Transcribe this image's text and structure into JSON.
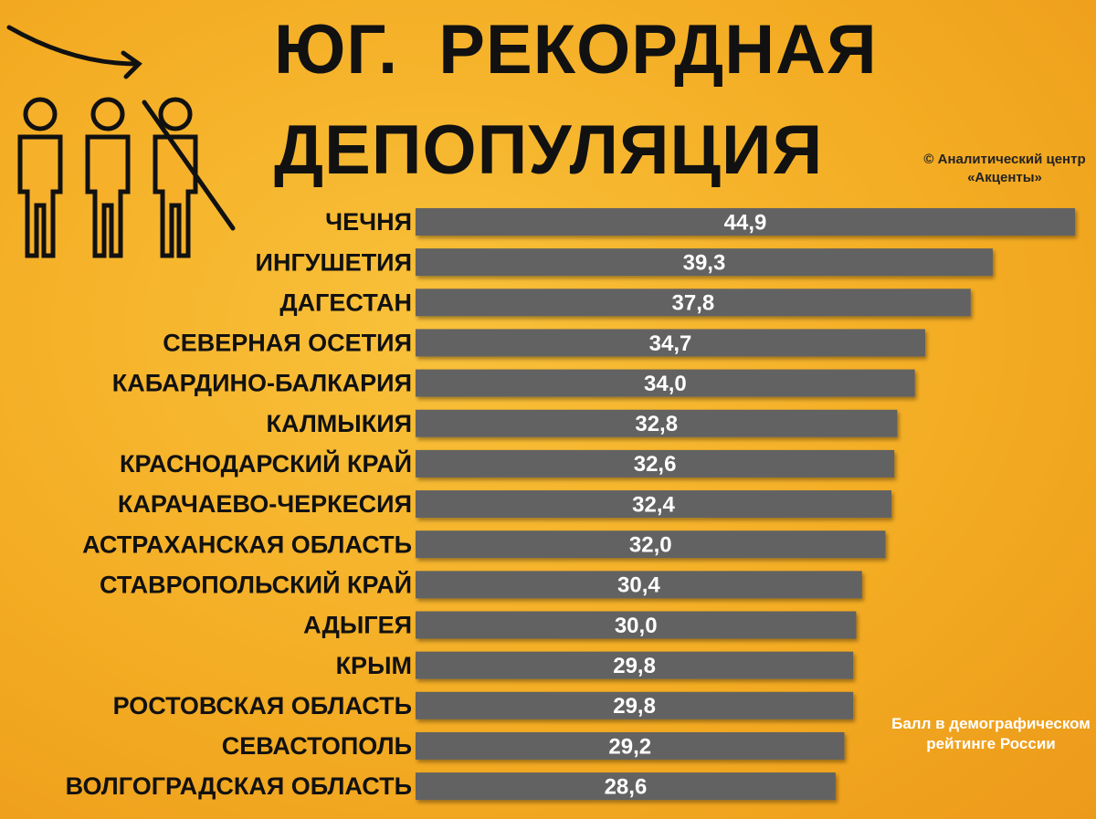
{
  "chart_data": {
    "type": "barh",
    "title": "ЮГ.  РЕКОРДНАЯ ДЕПОПУЛЯЦИЯ",
    "source": "© Аналитический центр «Акценты»",
    "value_note": "Балл в демографическом рейтинге России",
    "categories": [
      "ЧЕЧНЯ",
      "ИНГУШЕТИЯ",
      "ДАГЕСТАН",
      "СЕВЕРНАЯ ОСЕТИЯ",
      "КАБАРДИНО-БАЛКАРИЯ",
      "КАЛМЫКИЯ",
      "КРАСНОДАРСКИЙ КРАЙ",
      "КАРАЧАЕВО-ЧЕРКЕСИЯ",
      "АСТРАХАНСКАЯ ОБЛАСТЬ",
      "СТАВРОПОЛЬСКИЙ КРАЙ",
      "АДЫГЕЯ",
      "КРЫМ",
      "РОСТОВСКАЯ ОБЛАСТЬ",
      "СЕВАСТОПОЛЬ",
      "ВОЛГОГРАДСКАЯ ОБЛАСТЬ"
    ],
    "values": [
      44.9,
      39.3,
      37.8,
      34.7,
      34.0,
      32.8,
      32.6,
      32.4,
      32.0,
      30.4,
      30.0,
      29.8,
      29.8,
      29.2,
      28.6
    ],
    "value_labels": [
      "44,9",
      "39,3",
      "37,8",
      "34,7",
      "34,0",
      "32,8",
      "32,6",
      "32,4",
      "32,0",
      "30,4",
      "30,0",
      "29,8",
      "29,8",
      "29,2",
      "28,6"
    ],
    "color": "#626262"
  }
}
